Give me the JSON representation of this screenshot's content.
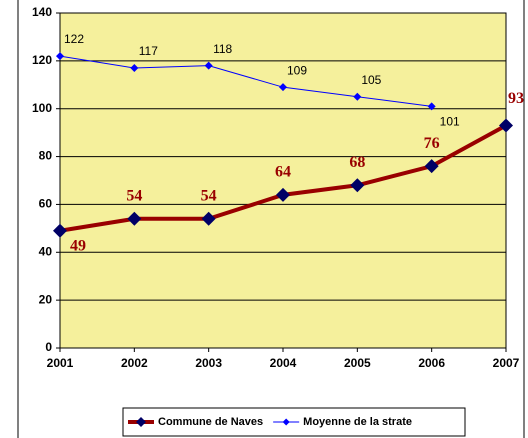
{
  "chart_data": {
    "type": "line",
    "categories": [
      "2001",
      "2002",
      "2003",
      "2004",
      "2005",
      "2006",
      "2007"
    ],
    "series": [
      {
        "name": "Commune de Naves",
        "color": "#990000",
        "marker_color": "#000066",
        "values": [
          49,
          54,
          54,
          64,
          68,
          76,
          93
        ]
      },
      {
        "name": "Moyenne de la strate",
        "color": "#0000ff",
        "marker_color": "#0000ff",
        "values": [
          122,
          117,
          118,
          109,
          105,
          101,
          null
        ]
      }
    ],
    "ylim": [
      0,
      140
    ],
    "yticks": [
      0,
      20,
      40,
      60,
      80,
      100,
      120,
      140
    ],
    "grid": true,
    "plot_color": "#f5f09c",
    "legend": "bottom"
  }
}
